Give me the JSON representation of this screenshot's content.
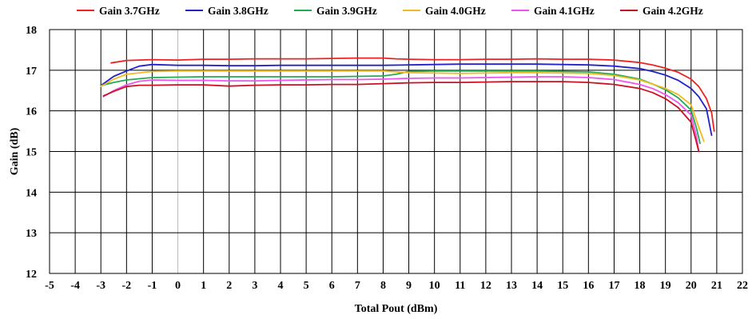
{
  "chart_data": {
    "type": "line",
    "xlabel": "Total Pout (dBm)",
    "ylabel": "Gain (dB)",
    "xlim": [
      -5,
      22
    ],
    "ylim": [
      12,
      18
    ],
    "xticks": [
      -5,
      -4,
      -3,
      -2,
      -1,
      0,
      1,
      2,
      3,
      4,
      5,
      6,
      7,
      8,
      9,
      10,
      11,
      12,
      13,
      14,
      15,
      16,
      17,
      18,
      19,
      20,
      21,
      22
    ],
    "yticks": [
      12,
      13,
      14,
      15,
      16,
      17,
      18
    ],
    "grid": true,
    "legend_position": "top",
    "series": [
      {
        "name": "Gain 3.7GHz",
        "color": "#ee2222",
        "points": [
          [
            -2.6,
            17.18
          ],
          [
            -2,
            17.24
          ],
          [
            -1,
            17.26
          ],
          [
            0,
            17.25
          ],
          [
            1,
            17.27
          ],
          [
            2,
            17.27
          ],
          [
            3,
            17.28
          ],
          [
            4,
            17.28
          ],
          [
            5,
            17.28
          ],
          [
            6,
            17.29
          ],
          [
            7,
            17.3
          ],
          [
            8,
            17.3
          ],
          [
            8.5,
            17.28
          ],
          [
            9,
            17.27
          ],
          [
            10,
            17.26
          ],
          [
            11,
            17.26
          ],
          [
            12,
            17.27
          ],
          [
            13,
            17.27
          ],
          [
            14,
            17.28
          ],
          [
            15,
            17.27
          ],
          [
            16,
            17.27
          ],
          [
            17,
            17.25
          ],
          [
            17.5,
            17.22
          ],
          [
            18,
            17.19
          ],
          [
            18.5,
            17.13
          ],
          [
            19,
            17.05
          ],
          [
            19.5,
            16.95
          ],
          [
            20,
            16.78
          ],
          [
            20.3,
            16.6
          ],
          [
            20.6,
            16.3
          ],
          [
            20.8,
            15.95
          ],
          [
            20.9,
            15.5
          ]
        ]
      },
      {
        "name": "Gain 3.8GHz",
        "color": "#2222cc",
        "points": [
          [
            -3,
            16.62
          ],
          [
            -2.5,
            16.85
          ],
          [
            -2,
            16.98
          ],
          [
            -1.5,
            17.1
          ],
          [
            -1,
            17.14
          ],
          [
            0,
            17.12
          ],
          [
            1,
            17.12
          ],
          [
            2,
            17.11
          ],
          [
            3,
            17.11
          ],
          [
            4,
            17.12
          ],
          [
            5,
            17.12
          ],
          [
            6,
            17.12
          ],
          [
            7,
            17.12
          ],
          [
            8,
            17.12
          ],
          [
            9,
            17.13
          ],
          [
            10,
            17.14
          ],
          [
            11,
            17.15
          ],
          [
            12,
            17.15
          ],
          [
            13,
            17.15
          ],
          [
            14,
            17.15
          ],
          [
            15,
            17.14
          ],
          [
            16,
            17.13
          ],
          [
            17,
            17.1
          ],
          [
            18,
            17.04
          ],
          [
            18.5,
            16.97
          ],
          [
            19,
            16.88
          ],
          [
            19.5,
            16.75
          ],
          [
            20,
            16.55
          ],
          [
            20.3,
            16.35
          ],
          [
            20.6,
            16.05
          ],
          [
            20.8,
            15.4
          ]
        ]
      },
      {
        "name": "Gain 3.9GHz",
        "color": "#22aa55",
        "points": [
          [
            -3,
            16.62
          ],
          [
            -2.5,
            16.7
          ],
          [
            -2,
            16.76
          ],
          [
            -1,
            16.82
          ],
          [
            0,
            16.83
          ],
          [
            1,
            16.84
          ],
          [
            2,
            16.84
          ],
          [
            3,
            16.84
          ],
          [
            4,
            16.84
          ],
          [
            5,
            16.84
          ],
          [
            6,
            16.84
          ],
          [
            7,
            16.85
          ],
          [
            8,
            16.86
          ],
          [
            8.5,
            16.9
          ],
          [
            9,
            16.97
          ],
          [
            10,
            16.98
          ],
          [
            11,
            16.98
          ],
          [
            12,
            16.98
          ],
          [
            13,
            16.98
          ],
          [
            14,
            16.98
          ],
          [
            15,
            16.97
          ],
          [
            16,
            16.96
          ],
          [
            17,
            16.9
          ],
          [
            18,
            16.78
          ],
          [
            18.5,
            16.66
          ],
          [
            19,
            16.52
          ],
          [
            19.5,
            16.32
          ],
          [
            20,
            16.02
          ],
          [
            20.2,
            15.6
          ],
          [
            20.35,
            15.2
          ]
        ]
      },
      {
        "name": "Gain 4.0GHz",
        "color": "#eebb22",
        "points": [
          [
            -3,
            16.6
          ],
          [
            -2.5,
            16.78
          ],
          [
            -2,
            16.9
          ],
          [
            -1,
            16.97
          ],
          [
            0,
            16.98
          ],
          [
            1,
            16.98
          ],
          [
            2,
            16.98
          ],
          [
            3,
            16.98
          ],
          [
            4,
            16.98
          ],
          [
            5,
            16.98
          ],
          [
            6,
            16.98
          ],
          [
            7,
            16.98
          ],
          [
            8,
            16.98
          ],
          [
            9,
            16.94
          ],
          [
            10,
            16.93
          ],
          [
            11,
            16.92
          ],
          [
            12,
            16.93
          ],
          [
            13,
            16.94
          ],
          [
            14,
            16.94
          ],
          [
            15,
            16.93
          ],
          [
            16,
            16.92
          ],
          [
            17,
            16.87
          ],
          [
            18,
            16.76
          ],
          [
            18.5,
            16.66
          ],
          [
            19,
            16.55
          ],
          [
            19.5,
            16.4
          ],
          [
            20,
            16.15
          ],
          [
            20.3,
            15.6
          ],
          [
            20.5,
            15.25
          ]
        ]
      },
      {
        "name": "Gain 4.1GHz",
        "color": "#ee55ee",
        "points": [
          [
            -2.9,
            16.35
          ],
          [
            -2.5,
            16.5
          ],
          [
            -2,
            16.64
          ],
          [
            -1.5,
            16.73
          ],
          [
            -1,
            16.76
          ],
          [
            0,
            16.75
          ],
          [
            1,
            16.75
          ],
          [
            2,
            16.74
          ],
          [
            3,
            16.74
          ],
          [
            4,
            16.75
          ],
          [
            5,
            16.76
          ],
          [
            6,
            16.77
          ],
          [
            7,
            16.77
          ],
          [
            8,
            16.78
          ],
          [
            9,
            16.8
          ],
          [
            10,
            16.81
          ],
          [
            11,
            16.81
          ],
          [
            12,
            16.82
          ],
          [
            13,
            16.83
          ],
          [
            14,
            16.84
          ],
          [
            15,
            16.84
          ],
          [
            16,
            16.82
          ],
          [
            17,
            16.77
          ],
          [
            18,
            16.65
          ],
          [
            18.5,
            16.55
          ],
          [
            19,
            16.4
          ],
          [
            19.5,
            16.2
          ],
          [
            20,
            15.9
          ],
          [
            20.2,
            15.4
          ],
          [
            20.3,
            15.0
          ]
        ]
      },
      {
        "name": "Gain 4.2GHz",
        "color": "#cc1122",
        "points": [
          [
            -2.9,
            16.37
          ],
          [
            -2.5,
            16.48
          ],
          [
            -2,
            16.6
          ],
          [
            -1.5,
            16.63
          ],
          [
            -1,
            16.63
          ],
          [
            0,
            16.64
          ],
          [
            1,
            16.64
          ],
          [
            2,
            16.61
          ],
          [
            3,
            16.63
          ],
          [
            4,
            16.64
          ],
          [
            5,
            16.64
          ],
          [
            6,
            16.65
          ],
          [
            7,
            16.65
          ],
          [
            8,
            16.67
          ],
          [
            9,
            16.69
          ],
          [
            10,
            16.7
          ],
          [
            11,
            16.7
          ],
          [
            12,
            16.71
          ],
          [
            13,
            16.72
          ],
          [
            14,
            16.72
          ],
          [
            15,
            16.72
          ],
          [
            16,
            16.7
          ],
          [
            17,
            16.65
          ],
          [
            18,
            16.55
          ],
          [
            18.5,
            16.45
          ],
          [
            19,
            16.3
          ],
          [
            19.5,
            16.08
          ],
          [
            20,
            15.72
          ],
          [
            20.2,
            15.25
          ],
          [
            20.3,
            15.0
          ]
        ]
      }
    ]
  }
}
